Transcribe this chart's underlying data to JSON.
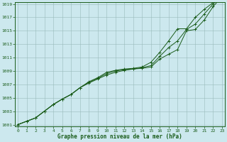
{
  "xlabel": "Graphe pression niveau de la mer (hPa)",
  "bg_color": "#cce8ee",
  "grid_color": "#99bbbb",
  "line_color": "#1a5c1a",
  "hours": [
    0,
    1,
    2,
    3,
    4,
    5,
    6,
    7,
    8,
    9,
    10,
    11,
    12,
    13,
    14,
    15,
    16,
    17,
    18,
    19,
    20,
    21,
    22,
    23
  ],
  "series1": [
    1001.0,
    1001.5,
    1002.0,
    1003.0,
    1004.0,
    1004.8,
    1005.5,
    1006.5,
    1007.2,
    1007.8,
    1008.4,
    1008.8,
    1009.1,
    1009.3,
    1009.4,
    1009.6,
    1010.8,
    1011.5,
    1012.2,
    1015.0,
    1015.2,
    1016.6,
    1018.6,
    1020.1
  ],
  "series2": [
    1001.0,
    1001.5,
    1002.0,
    1003.0,
    1004.0,
    1004.8,
    1005.5,
    1006.5,
    1007.3,
    1007.9,
    1008.6,
    1009.0,
    1009.2,
    1009.3,
    1009.5,
    1009.8,
    1011.2,
    1012.5,
    1013.5,
    1015.2,
    1016.0,
    1017.5,
    1019.0,
    1020.3
  ],
  "series3": [
    1001.0,
    1001.5,
    1002.0,
    1003.0,
    1004.0,
    1004.8,
    1005.5,
    1006.5,
    1007.4,
    1008.0,
    1008.8,
    1009.1,
    1009.3,
    1009.4,
    1009.6,
    1010.3,
    1011.8,
    1013.5,
    1015.3,
    1015.3,
    1017.0,
    1018.2,
    1019.2,
    1020.5
  ],
  "ylim_min": 1001,
  "ylim_max": 1019,
  "yticks": [
    1001,
    1003,
    1005,
    1007,
    1009,
    1011,
    1013,
    1015,
    1017,
    1019
  ],
  "xticks": [
    0,
    1,
    2,
    3,
    4,
    5,
    6,
    7,
    8,
    9,
    10,
    11,
    12,
    13,
    14,
    15,
    16,
    17,
    18,
    19,
    20,
    21,
    22,
    23
  ]
}
